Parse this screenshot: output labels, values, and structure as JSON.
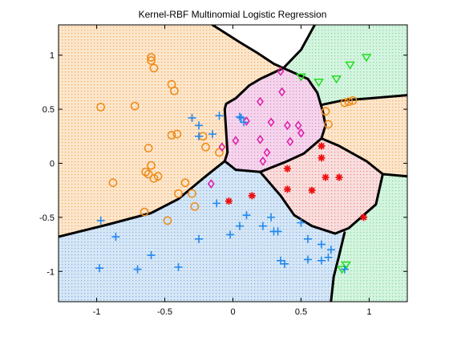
{
  "chart_data": {
    "type": "scatter",
    "title": "Kernel-RBF Multinomial Logistic Regression",
    "xlabel": "",
    "ylabel": "",
    "xlim": [
      -1.28,
      1.28
    ],
    "ylim": [
      -1.28,
      1.28
    ],
    "x_ticks": [
      "-1",
      "-0.5",
      "0",
      "0.5",
      "1"
    ],
    "y_ticks": [
      "1",
      "0.5",
      "0",
      "-0.5",
      "-1"
    ],
    "x_tick_values": [
      -1,
      -0.5,
      0,
      0.5,
      1
    ],
    "y_tick_values": [
      1,
      0.5,
      0,
      -0.5,
      -1
    ],
    "grid": false,
    "legend": "none",
    "region_colors": {
      "orange": "#fce6cc",
      "pink": "#f4d6ec",
      "green": "#d5f4e0",
      "blue": "#d6e6f5",
      "red": "#f8dede"
    },
    "boundaries": [
      [
        [
          -0.15,
          1.28
        ],
        [
          0.05,
          1.12
        ],
        [
          0.18,
          1.02
        ],
        [
          0.3,
          0.92
        ],
        [
          0.37,
          0.88
        ]
      ],
      [
        [
          0.37,
          0.88
        ],
        [
          0.2,
          0.78
        ],
        [
          0.12,
          0.72
        ],
        [
          0.02,
          0.6
        ],
        [
          -0.05,
          0.55
        ],
        [
          -0.06,
          0.5
        ],
        [
          -0.05,
          0.3
        ],
        [
          -0.04,
          0.1
        ],
        [
          -0.06,
          0.02
        ]
      ],
      [
        [
          0.37,
          0.88
        ],
        [
          0.55,
          0.78
        ],
        [
          0.62,
          0.65
        ],
        [
          0.66,
          0.48
        ],
        [
          0.68,
          0.35
        ],
        [
          0.65,
          0.23
        ]
      ],
      [
        [
          -0.06,
          0.02
        ],
        [
          0.02,
          -0.06
        ],
        [
          0.2,
          -0.08
        ],
        [
          0.38,
          0.01
        ],
        [
          0.52,
          0.09
        ],
        [
          0.65,
          0.23
        ]
      ],
      [
        [
          0.65,
          0.23
        ],
        [
          0.78,
          0.16
        ],
        [
          0.98,
          0.02
        ],
        [
          1.1,
          -0.1
        ],
        [
          1.28,
          -0.12
        ]
      ],
      [
        [
          0.65,
          0.54
        ],
        [
          0.8,
          0.58
        ],
        [
          1.0,
          0.6
        ],
        [
          1.28,
          0.63
        ]
      ],
      [
        [
          0.37,
          0.88
        ],
        [
          0.5,
          1.05
        ],
        [
          0.6,
          1.28
        ]
      ],
      [
        [
          -1.28,
          -0.68
        ],
        [
          -0.9,
          -0.56
        ],
        [
          -0.6,
          -0.46
        ],
        [
          -0.4,
          -0.33
        ],
        [
          -0.2,
          -0.12
        ],
        [
          -0.06,
          0.02
        ]
      ],
      [
        [
          0.2,
          -0.08
        ],
        [
          0.35,
          -0.3
        ],
        [
          0.45,
          -0.48
        ],
        [
          0.58,
          -0.58
        ],
        [
          0.75,
          -0.65
        ],
        [
          0.85,
          -0.6
        ],
        [
          1.05,
          -0.38
        ],
        [
          1.1,
          -0.1
        ]
      ],
      [
        [
          0.82,
          -0.64
        ],
        [
          0.78,
          -0.85
        ],
        [
          0.74,
          -1.05
        ],
        [
          0.72,
          -1.28
        ]
      ]
    ],
    "series": [
      {
        "marker": "circle",
        "color": "#ee8a18",
        "points": [
          [
            -0.97,
            0.52
          ],
          [
            -0.72,
            0.53
          ],
          [
            -0.6,
            0.98
          ],
          [
            -0.6,
            0.95
          ],
          [
            -0.58,
            0.88
          ],
          [
            -0.45,
            0.73
          ],
          [
            -0.43,
            0.67
          ],
          [
            -0.45,
            0.26
          ],
          [
            -0.41,
            0.27
          ],
          [
            -0.62,
            0.14
          ],
          [
            -0.6,
            -0.02
          ],
          [
            -0.62,
            -0.1
          ],
          [
            -0.64,
            -0.08
          ],
          [
            -0.58,
            -0.14
          ],
          [
            -0.88,
            -0.18
          ],
          [
            -0.55,
            -0.12
          ],
          [
            -0.4,
            -0.28
          ],
          [
            -0.3,
            -0.28
          ],
          [
            -0.35,
            -0.18
          ],
          [
            -0.28,
            -0.4
          ],
          [
            -0.1,
            0.1
          ],
          [
            -0.22,
            0.25
          ],
          [
            -0.2,
            0.15
          ],
          [
            -0.65,
            -0.45
          ],
          [
            -0.48,
            -0.53
          ],
          [
            0.68,
            0.48
          ],
          [
            0.7,
            0.36
          ],
          [
            0.82,
            0.56
          ],
          [
            0.85,
            0.57
          ],
          [
            0.88,
            0.58
          ]
        ]
      },
      {
        "marker": "diamond",
        "color": "#dd1aa8",
        "points": [
          [
            0.35,
            0.85
          ],
          [
            0.2,
            0.57
          ],
          [
            0.36,
            0.66
          ],
          [
            0.1,
            0.39
          ],
          [
            0.02,
            0.21
          ],
          [
            -0.08,
            0.15
          ],
          [
            0.2,
            0.22
          ],
          [
            0.28,
            0.38
          ],
          [
            0.4,
            0.35
          ],
          [
            0.48,
            0.35
          ],
          [
            0.42,
            0.2
          ],
          [
            0.5,
            0.28
          ],
          [
            0.25,
            0.1
          ],
          [
            0.22,
            0.02
          ],
          [
            -0.16,
            -0.19
          ]
        ]
      },
      {
        "marker": "triangle",
        "color": "#22dd22",
        "points": [
          [
            0.5,
            0.8
          ],
          [
            0.63,
            0.75
          ],
          [
            0.76,
            0.78
          ],
          [
            0.86,
            0.91
          ],
          [
            0.98,
            0.98
          ],
          [
            0.83,
            -0.94
          ],
          [
            0.8,
            -0.98
          ]
        ]
      },
      {
        "marker": "plus",
        "color": "#2288ee",
        "points": [
          [
            -0.3,
            0.42
          ],
          [
            -0.25,
            0.35
          ],
          [
            -0.25,
            0.25
          ],
          [
            -0.15,
            0.27
          ],
          [
            -0.1,
            0.44
          ],
          [
            0.05,
            0.43
          ],
          [
            0.08,
            0.38
          ],
          [
            0.06,
            0.42
          ],
          [
            -0.97,
            -0.53
          ],
          [
            -0.86,
            -0.68
          ],
          [
            -0.6,
            -0.85
          ],
          [
            -0.7,
            -0.98
          ],
          [
            -0.98,
            -0.97
          ],
          [
            -0.4,
            -0.96
          ],
          [
            -0.25,
            -0.7
          ],
          [
            -0.12,
            -0.37
          ],
          [
            -0.02,
            -0.66
          ],
          [
            0.05,
            -0.58
          ],
          [
            0.1,
            -0.48
          ],
          [
            0.22,
            -0.58
          ],
          [
            0.28,
            -0.5
          ],
          [
            0.3,
            -0.63
          ],
          [
            0.33,
            -0.63
          ],
          [
            0.35,
            -0.9
          ],
          [
            0.38,
            -0.93
          ],
          [
            0.5,
            -0.55
          ],
          [
            0.55,
            -0.7
          ],
          [
            0.55,
            -0.89
          ],
          [
            0.65,
            -0.75
          ],
          [
            0.65,
            -0.9
          ],
          [
            0.7,
            -0.87
          ],
          [
            0.72,
            -0.8
          ],
          [
            0.82,
            -0.98
          ]
        ]
      },
      {
        "marker": "star",
        "color": "#ee1111",
        "points": [
          [
            -0.03,
            -0.35
          ],
          [
            0.14,
            -0.3
          ],
          [
            0.4,
            -0.05
          ],
          [
            0.4,
            -0.24
          ],
          [
            0.58,
            -0.25
          ],
          [
            0.68,
            -0.13
          ],
          [
            0.78,
            -0.13
          ],
          [
            0.65,
            0.16
          ],
          [
            0.65,
            0.05
          ],
          [
            0.96,
            -0.5
          ]
        ]
      }
    ]
  }
}
